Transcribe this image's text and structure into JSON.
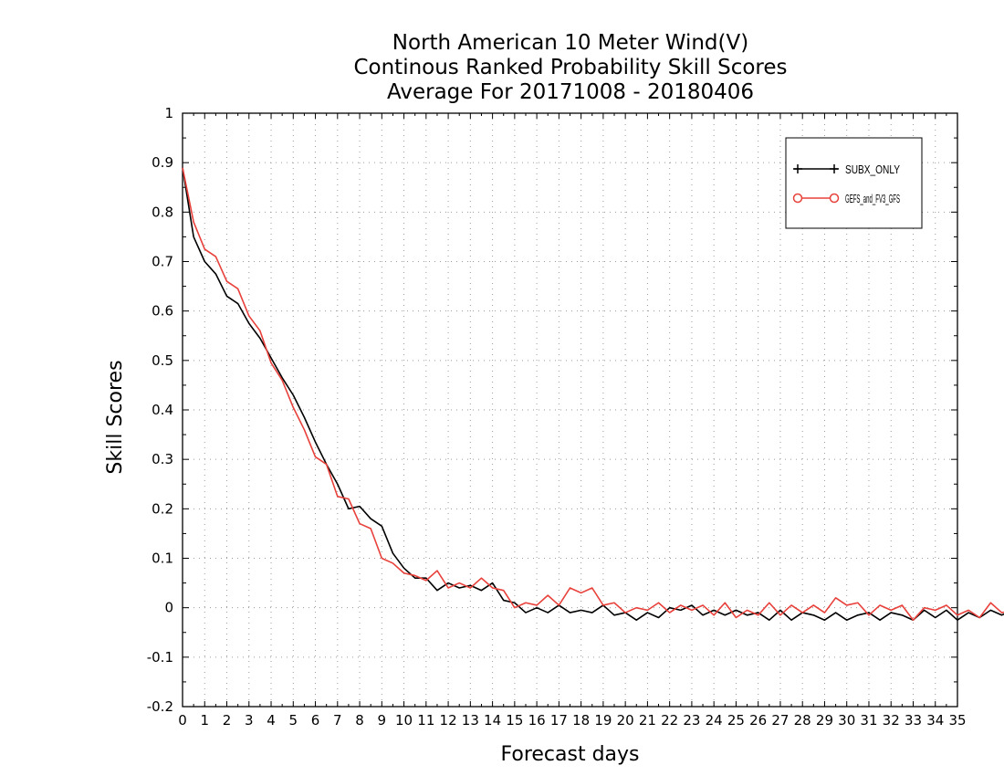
{
  "chart_data": {
    "type": "line",
    "title": [
      "North American 10 Meter Wind(V)",
      "Continous Ranked Probability Skill Scores",
      "Average For 20171008 - 20180406"
    ],
    "xlabel": "Forecast days",
    "ylabel": "Skill Scores",
    "xlim": [
      0,
      35
    ],
    "ylim": [
      -0.2,
      1
    ],
    "x_ticks": [
      "0",
      "1",
      "2",
      "3",
      "4",
      "5",
      "6",
      "7",
      "8",
      "9",
      "10",
      "11",
      "12",
      "13",
      "14",
      "15",
      "16",
      "17",
      "18",
      "19",
      "20",
      "21",
      "22",
      "23",
      "24",
      "25",
      "26",
      "27",
      "28",
      "29",
      "30",
      "31",
      "32",
      "33",
      "34",
      "35"
    ],
    "y_ticks": [
      "1",
      "0.9",
      "0.8",
      "0.7",
      "0.6",
      "0.5",
      "0.4",
      "0.3",
      "0.2",
      "0.1",
      "0",
      "-0.1",
      "-0.2"
    ],
    "grid": true,
    "legend_position": "top-right",
    "x_step": 0.5,
    "series": [
      {
        "name": "SUBX_ONLY",
        "color": "#000000",
        "marker": "plus",
        "values": [
          0.89,
          0.75,
          0.7,
          0.675,
          0.63,
          0.615,
          0.575,
          0.545,
          0.505,
          0.465,
          0.43,
          0.385,
          0.335,
          0.29,
          0.25,
          0.2,
          0.205,
          0.18,
          0.165,
          0.11,
          0.08,
          0.06,
          0.06,
          0.035,
          0.05,
          0.04,
          0.045,
          0.035,
          0.05,
          0.015,
          0.01,
          -0.01,
          0.0,
          -0.01,
          0.005,
          -0.01,
          -0.005,
          -0.01,
          0.005,
          -0.015,
          -0.01,
          -0.025,
          -0.01,
          -0.02,
          0.0,
          -0.005,
          0.005,
          -0.015,
          -0.005,
          -0.015,
          -0.005,
          -0.015,
          -0.01,
          -0.025,
          -0.005,
          -0.025,
          -0.01,
          -0.015,
          -0.025,
          -0.01,
          -0.025,
          -0.015,
          -0.01,
          -0.025,
          -0.01,
          -0.015,
          -0.025,
          -0.005,
          -0.02,
          -0.005,
          -0.025,
          -0.01,
          -0.02,
          -0.005,
          -0.015,
          -0.005,
          -0.01,
          -0.015,
          -0.005,
          -0.02,
          -0.01,
          -0.02,
          -0.01,
          -0.025,
          -0.005,
          -0.02,
          0.005,
          0.01,
          0.0,
          -0.005,
          0.01,
          0.0,
          0.01,
          -0.01,
          0.005,
          0.01,
          0.0,
          0.02,
          0.005
        ],
        "note_sampling": "values sampled every 0.5 forecast day"
      },
      {
        "name": "GEFS_and_FV3_GFS",
        "color": "#e8403a",
        "marker": "circle",
        "values": [
          0.89,
          0.78,
          0.725,
          0.71,
          0.66,
          0.645,
          0.59,
          0.56,
          0.495,
          0.46,
          0.405,
          0.36,
          0.305,
          0.29,
          0.225,
          0.22,
          0.17,
          0.16,
          0.1,
          0.09,
          0.07,
          0.065,
          0.055,
          0.075,
          0.04,
          0.05,
          0.04,
          0.06,
          0.04,
          0.035,
          0.0,
          0.01,
          0.005,
          0.025,
          0.005,
          0.04,
          0.03,
          0.04,
          0.005,
          0.01,
          -0.01,
          0.0,
          -0.005,
          0.01,
          -0.01,
          0.005,
          -0.005,
          0.005,
          -0.015,
          0.01,
          -0.02,
          -0.005,
          -0.015,
          0.01,
          -0.015,
          0.005,
          -0.01,
          0.005,
          -0.01,
          0.02,
          0.005,
          0.01,
          -0.015,
          0.005,
          -0.005,
          0.005,
          -0.025,
          0.0,
          -0.005,
          0.005,
          -0.015,
          -0.005,
          -0.02,
          0.01,
          -0.01,
          -0.005,
          -0.015,
          -0.005,
          -0.01,
          0.005,
          -0.015,
          -0.005,
          0.0,
          0.0,
          -0.005,
          -0.01,
          0.005,
          0.01,
          -0.015,
          0.0,
          -0.02,
          0.005,
          -0.01,
          0.0,
          -0.015,
          0.01,
          0.0,
          0.005,
          -0.02
        ]
      }
    ],
    "legend": [
      {
        "label": "SUBX_ONLY"
      },
      {
        "label": "GEFS_and_FV3_GFS"
      }
    ]
  }
}
